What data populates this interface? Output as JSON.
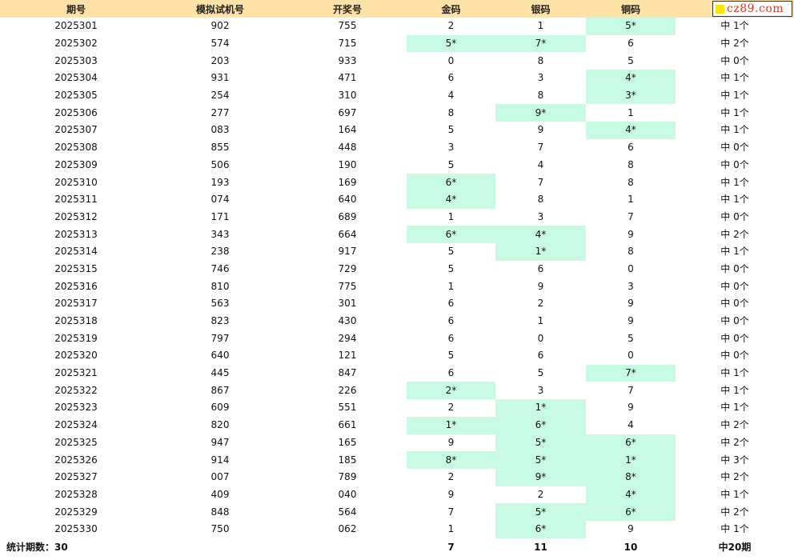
{
  "headers": [
    "期号",
    "模拟试机号",
    "开奖号",
    "金码",
    "银码",
    "铜码",
    ""
  ],
  "logo_text": "cz89.com",
  "highlight_color": "#c7fbe3",
  "header_color": "#ffe3a6",
  "rows": [
    {
      "qh": "2025301",
      "sj": "902",
      "kj": "755",
      "gold": "2",
      "silver": "1",
      "bronze": "5*",
      "res": "中 1个"
    },
    {
      "qh": "2025302",
      "sj": "574",
      "kj": "715",
      "gold": "5*",
      "silver": "7*",
      "bronze": "6",
      "res": "中 2个"
    },
    {
      "qh": "2025303",
      "sj": "203",
      "kj": "933",
      "gold": "0",
      "silver": "8",
      "bronze": "5",
      "res": "中 0个"
    },
    {
      "qh": "2025304",
      "sj": "931",
      "kj": "471",
      "gold": "6",
      "silver": "3",
      "bronze": "4*",
      "res": "中 1个"
    },
    {
      "qh": "2025305",
      "sj": "254",
      "kj": "310",
      "gold": "4",
      "silver": "8",
      "bronze": "3*",
      "res": "中 1个"
    },
    {
      "qh": "2025306",
      "sj": "277",
      "kj": "697",
      "gold": "8",
      "silver": "9*",
      "bronze": "1",
      "res": "中 1个"
    },
    {
      "qh": "2025307",
      "sj": "083",
      "kj": "164",
      "gold": "5",
      "silver": "9",
      "bronze": "4*",
      "res": "中 1个"
    },
    {
      "qh": "2025308",
      "sj": "855",
      "kj": "448",
      "gold": "3",
      "silver": "7",
      "bronze": "6",
      "res": "中 0个"
    },
    {
      "qh": "2025309",
      "sj": "506",
      "kj": "190",
      "gold": "5",
      "silver": "4",
      "bronze": "8",
      "res": "中 0个"
    },
    {
      "qh": "2025310",
      "sj": "193",
      "kj": "169",
      "gold": "6*",
      "silver": "7",
      "bronze": "8",
      "res": "中 1个"
    },
    {
      "qh": "2025311",
      "sj": "074",
      "kj": "640",
      "gold": "4*",
      "silver": "8",
      "bronze": "1",
      "res": "中 1个"
    },
    {
      "qh": "2025312",
      "sj": "171",
      "kj": "689",
      "gold": "1",
      "silver": "3",
      "bronze": "7",
      "res": "中 0个"
    },
    {
      "qh": "2025313",
      "sj": "343",
      "kj": "664",
      "gold": "6*",
      "silver": "4*",
      "bronze": "9",
      "res": "中 2个"
    },
    {
      "qh": "2025314",
      "sj": "238",
      "kj": "917",
      "gold": "5",
      "silver": "1*",
      "bronze": "8",
      "res": "中 1个"
    },
    {
      "qh": "2025315",
      "sj": "746",
      "kj": "729",
      "gold": "5",
      "silver": "6",
      "bronze": "0",
      "res": "中 0个"
    },
    {
      "qh": "2025316",
      "sj": "810",
      "kj": "775",
      "gold": "1",
      "silver": "9",
      "bronze": "3",
      "res": "中 0个"
    },
    {
      "qh": "2025317",
      "sj": "563",
      "kj": "301",
      "gold": "6",
      "silver": "2",
      "bronze": "9",
      "res": "中 0个"
    },
    {
      "qh": "2025318",
      "sj": "823",
      "kj": "430",
      "gold": "6",
      "silver": "1",
      "bronze": "9",
      "res": "中 0个"
    },
    {
      "qh": "2025319",
      "sj": "797",
      "kj": "294",
      "gold": "6",
      "silver": "0",
      "bronze": "5",
      "res": "中 0个"
    },
    {
      "qh": "2025320",
      "sj": "640",
      "kj": "121",
      "gold": "5",
      "silver": "6",
      "bronze": "0",
      "res": "中 0个"
    },
    {
      "qh": "2025321",
      "sj": "445",
      "kj": "847",
      "gold": "6",
      "silver": "5",
      "bronze": "7*",
      "res": "中 1个"
    },
    {
      "qh": "2025322",
      "sj": "867",
      "kj": "226",
      "gold": "2*",
      "silver": "3",
      "bronze": "7",
      "res": "中 1个"
    },
    {
      "qh": "2025323",
      "sj": "609",
      "kj": "551",
      "gold": "2",
      "silver": "1*",
      "bronze": "9",
      "res": "中 1个"
    },
    {
      "qh": "2025324",
      "sj": "820",
      "kj": "661",
      "gold": "1*",
      "silver": "6*",
      "bronze": "4",
      "res": "中 2个"
    },
    {
      "qh": "2025325",
      "sj": "947",
      "kj": "165",
      "gold": "9",
      "silver": "5*",
      "bronze": "6*",
      "res": "中 2个"
    },
    {
      "qh": "2025326",
      "sj": "914",
      "kj": "185",
      "gold": "8*",
      "silver": "5*",
      "bronze": "1*",
      "res": "中 3个"
    },
    {
      "qh": "2025327",
      "sj": "007",
      "kj": "789",
      "gold": "2",
      "silver": "9*",
      "bronze": "8*",
      "res": "中 2个"
    },
    {
      "qh": "2025328",
      "sj": "409",
      "kj": "040",
      "gold": "9",
      "silver": "2",
      "bronze": "4*",
      "res": "中 1个"
    },
    {
      "qh": "2025329",
      "sj": "848",
      "kj": "564",
      "gold": "7",
      "silver": "5*",
      "bronze": "6*",
      "res": "中 2个"
    },
    {
      "qh": "2025330",
      "sj": "750",
      "kj": "062",
      "gold": "1",
      "silver": "6*",
      "bronze": "9",
      "res": "中 1个"
    }
  ],
  "footer": {
    "label": "统计期数：30",
    "gold": "7",
    "silver": "11",
    "bronze": "10",
    "total": "中20期"
  }
}
